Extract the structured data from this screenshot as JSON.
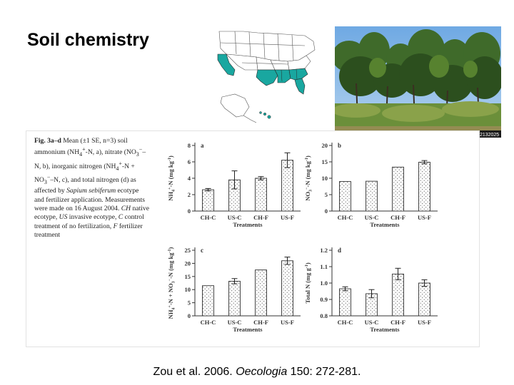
{
  "slide": {
    "title": "Soil chemistry"
  },
  "photo": {
    "watermark": "UGA2132025"
  },
  "caption": {
    "fig_label": "Fig. 3a–d",
    "text_1": " Mean (±1 SE, n=3) soil ammonium (NH",
    "sub_4": "4",
    "sup_plus": "+",
    "text_2": "-N, a), nitrate (NO",
    "sub_3": "3",
    "sup_minus": "−",
    "text_3": "–N, b), inorganic nitrogen (NH",
    "text_4": "-N + NO",
    "text_5": "–N, c), and total nitrogen (d) as affected by ",
    "species": "Sapium sebiferum",
    "text_6": " ecotype and fertilizer application. Measurements were made on 16 August 2004. ",
    "abbr_ch": "CH",
    "text_7": " native ecotype, ",
    "abbr_us": "US",
    "text_8": " invasive ecotype, ",
    "abbr_c": "C",
    "text_9": " control treatment of no fertilization, ",
    "abbr_f": "F",
    "text_10": " fertilizer treatment"
  },
  "citation": {
    "authors": "Zou et al. 2006. ",
    "journal": "Oecologia",
    "details": " 150: 272-281."
  },
  "colors": {
    "map_highlight": "#19a7a0",
    "bar_fill": "#ffffff",
    "stipple": "#333333"
  },
  "chart_data": [
    {
      "panel": "a",
      "type": "bar",
      "categories": [
        "CH-C",
        "US-C",
        "CH-F",
        "US-F"
      ],
      "values": [
        2.6,
        3.8,
        4.0,
        6.2
      ],
      "errors": [
        0.15,
        1.1,
        0.2,
        0.9
      ],
      "ylabel": "NH4+-N (mg kg-1)",
      "xlabel": "Treatments",
      "ylim": [
        0,
        8
      ],
      "yticks": [
        "0",
        "2",
        "4",
        "6",
        "8"
      ]
    },
    {
      "panel": "b",
      "type": "bar",
      "categories": [
        "CH-C",
        "US-C",
        "CH-F",
        "US-F"
      ],
      "values": [
        9.0,
        9.1,
        13.4,
        14.9
      ],
      "errors": [
        0,
        0,
        0,
        0.5
      ],
      "ylabel": "NO3--N (mg kg-1)",
      "xlabel": "Treatments",
      "ylim": [
        0,
        20
      ],
      "yticks": [
        "0",
        "5",
        "10",
        "15",
        "20"
      ]
    },
    {
      "panel": "c",
      "type": "bar",
      "categories": [
        "CH-C",
        "US-C",
        "CH-F",
        "US-F"
      ],
      "values": [
        11.5,
        13.2,
        17.5,
        21.0
      ],
      "errors": [
        0,
        1.0,
        0,
        1.4
      ],
      "ylabel": "NH4+-N + NO3--N (mg kg-1)",
      "xlabel": "Treatments",
      "ylim": [
        0,
        25
      ],
      "yticks": [
        "0",
        "5",
        "10",
        "15",
        "20",
        "25"
      ]
    },
    {
      "panel": "d",
      "type": "bar",
      "categories": [
        "CH-C",
        "US-C",
        "CH-F",
        "US-F"
      ],
      "values": [
        0.965,
        0.935,
        1.055,
        1.0
      ],
      "errors": [
        0.012,
        0.025,
        0.035,
        0.02
      ],
      "ylabel": "Total N (mg g-1)",
      "xlabel": "Treatments",
      "ylim": [
        0.8,
        1.2
      ],
      "yticks": [
        "0.8",
        "0.9",
        "1.0",
        "1.1",
        "1.2"
      ]
    }
  ]
}
